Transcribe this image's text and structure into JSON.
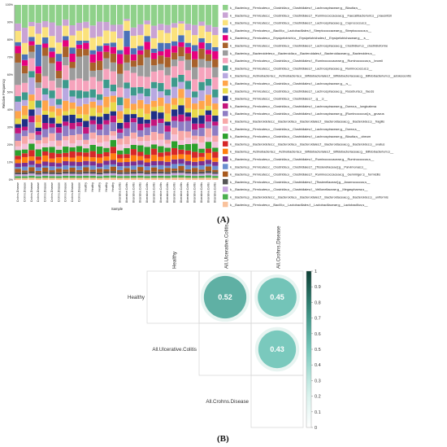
{
  "panels": {
    "a_label": "(A)",
    "b_label": "(B)"
  },
  "chart_data": [
    {
      "type": "bar",
      "stacked": true,
      "ylabel": "Relative Frequency",
      "xlabel": "Sample",
      "yticks": [
        "0%",
        "10%",
        "20%",
        "30%",
        "40%",
        "50%",
        "60%",
        "70%",
        "80%",
        "90%",
        "100%"
      ],
      "ylim": [
        0,
        100
      ],
      "categories": [
        "Crohns.Disease",
        "Crohns.Disease",
        "Crohns.Disease",
        "Crohns.Disease",
        "Crohns.Disease",
        "Crohns.Disease",
        "Crohns.Disease",
        "Crohns.Disease",
        "Crohns.Disease",
        "Crohns.Disease",
        "Healthy",
        "Healthy",
        "Healthy",
        "Healthy",
        "Healthy",
        "Ulcerative.Colitis",
        "Ulcerative.Colitis",
        "Ulcerative.Colitis",
        "Ulcerative.Colitis",
        "Ulcerative.Colitis",
        "Ulcerative.Colitis",
        "Ulcerative.Colitis",
        "Ulcerative.Colitis",
        "Ulcerative.Colitis",
        "Ulcerative.Colitis",
        "Ulcerative.Colitis",
        "Ulcerative.Colitis",
        "Ulcerative.Colitis",
        "Ulcerative.Colitis",
        "Ulcerative.Colitis"
      ],
      "series": [
        {
          "name": "k__Bacteria;p__Firmicutes;c__Clostridia;o__Clostridiales;f__Lachnospiraceae;g__Blautia;s__",
          "color": "#8fd18a",
          "values": [
            10,
            12,
            8,
            10,
            8,
            9,
            11,
            7,
            10,
            9,
            8,
            10,
            9,
            8,
            9,
            10,
            7,
            11,
            9,
            8,
            10,
            9,
            10,
            8,
            7,
            9,
            10,
            8,
            9,
            11
          ]
        },
        {
          "name": "k__Bacteria;p__Firmicutes;c__Clostridia;o__Clostridiales;f__Ruminococcaceae;g__Faecalibacterium;s__prausnitzii",
          "color": "#c9a3d4",
          "values": [
            4,
            8,
            2,
            6,
            3,
            7,
            9,
            3,
            5,
            4,
            3,
            6,
            8,
            4,
            3,
            7,
            1,
            4,
            5,
            2,
            6,
            3,
            4,
            2,
            1,
            3,
            5,
            2,
            3,
            4
          ]
        },
        {
          "name": "k__Bacteria;p__Firmicutes;c__Clostridia;o__Clostridiales;f__Lachnospiraceae;g__Coprococcus;s__",
          "color": "#fbe27c",
          "values": [
            6,
            6,
            5,
            6,
            5,
            6,
            6,
            5,
            6,
            5,
            6,
            6,
            5,
            6,
            5,
            6,
            5,
            6,
            5,
            6,
            5,
            6,
            5,
            6,
            5,
            6,
            5,
            6,
            5,
            6
          ]
        },
        {
          "name": "k__Bacteria;p__Firmicutes;c__Bacilli;o__Lactobacillales;f__Streptococcaceae;g__Streptococcus;s__",
          "color": "#4a72b8",
          "values": [
            2,
            3,
            2,
            12,
            3,
            2,
            4,
            2,
            3,
            2,
            1,
            2,
            3,
            1,
            2,
            2,
            8,
            3,
            2,
            3,
            2,
            4,
            3,
            2,
            3,
            2,
            3,
            2,
            3,
            2
          ]
        },
        {
          "name": "k__Bacteria;p__Firmicutes;c__Erysipelotrichi;o__Erysipelotrichales;f__Erysipelotrichaceae;g__;s__",
          "color": "#e6007e",
          "values": [
            4,
            3,
            2,
            4,
            2,
            3,
            5,
            3,
            4,
            2,
            3,
            4,
            5,
            3,
            3,
            5,
            4,
            3,
            2,
            4,
            3,
            2,
            4,
            3,
            2,
            3,
            4,
            3,
            2,
            4
          ]
        },
        {
          "name": "k__Bacteria;p__Firmicutes;c__Clostridia;o__Clostridiales;f__Lachnospiraceae;g__Clostridium;s__clostridioforme",
          "color": "#a8612a",
          "values": [
            5,
            4,
            3,
            5,
            4,
            3,
            4,
            5,
            3,
            4,
            3,
            4,
            5,
            3,
            4,
            5,
            4,
            3,
            5,
            4,
            3,
            4,
            5,
            3,
            4,
            3,
            4,
            5,
            3,
            4
          ]
        },
        {
          "name": "k__Bacteria;p__Bacteroidetes;c__Bacteroidia;o__Bacteroidales;f__Bacteroidaceae;g__Bacteroides;s__",
          "color": "#9c9c9c",
          "values": [
            12,
            5,
            3,
            3,
            10,
            9,
            5,
            4,
            6,
            11,
            12,
            3,
            6,
            5,
            4,
            7,
            4,
            3,
            5,
            10,
            3,
            3,
            4,
            3,
            2,
            5,
            6,
            4,
            3,
            5
          ]
        },
        {
          "name": "k__Bacteria;p__Firmicutes;c__Clostridia;o__Clostridiales;f__Ruminococcaceae;g__Ruminococcus;s__bromii",
          "color": "#f6a3bc",
          "values": [
            6,
            5,
            6,
            7,
            6,
            5,
            6,
            7,
            5,
            6,
            5,
            6,
            7,
            5,
            6,
            5,
            6,
            7,
            5,
            6,
            5,
            6,
            7,
            5,
            6,
            5,
            6,
            7,
            5,
            6
          ]
        },
        {
          "name": "k__Bacteria;p__Firmicutes;c__Clostridia;o__Clostridiales;f__Lachnospiraceae;g__Ruminococcus;s__",
          "color": "#3d9a8c",
          "values": [
            3,
            4,
            3,
            4,
            3,
            4,
            3,
            4,
            3,
            4,
            3,
            4,
            3,
            4,
            3,
            4,
            3,
            4,
            3,
            4,
            3,
            4,
            3,
            4,
            3,
            4,
            3,
            4,
            3,
            4
          ]
        },
        {
          "name": "k__Bacteria;p__Actinobacteria;c__Actinobacteria;o__Bifidobacteriales;f__Bifidobacteriaceae;g__Bifidobacterium;s__adolescentis",
          "color": "#b8a8e0",
          "values": [
            5,
            3,
            8,
            4,
            3,
            4,
            2,
            6,
            3,
            4,
            3,
            2,
            3,
            4,
            2,
            3,
            5,
            4,
            3,
            4,
            6,
            3,
            4,
            5,
            3,
            4,
            3,
            5,
            4,
            3
          ]
        },
        {
          "name": "k__Bacteria;p__Firmicutes;c__Clostridia;o__Clostridiales;f__Lachnospiraceae;g__;s__",
          "color": "#ffa54a",
          "values": [
            4,
            5,
            3,
            4,
            5,
            3,
            4,
            5,
            3,
            4,
            5,
            3,
            4,
            5,
            3,
            4,
            5,
            3,
            4,
            5,
            3,
            4,
            5,
            3,
            4,
            5,
            3,
            4,
            5,
            3
          ]
        },
        {
          "name": "k__Bacteria;p__Firmicutes;c__Clostridia;o__Clostridiales;f__Lachnospiraceae;g__Roseburia;s__faecis",
          "color": "#e8d94a",
          "values": [
            3,
            2,
            4,
            3,
            2,
            3,
            4,
            2,
            3,
            2,
            3,
            4,
            2,
            3,
            4,
            2,
            3,
            2,
            4,
            3,
            2,
            3,
            4,
            2,
            3,
            2,
            4,
            3,
            2,
            3
          ]
        },
        {
          "name": "k__Bacteria;p__Firmicutes;c__Clostridia;o__Clostridiales;f__;g__;s__",
          "color": "#1f2f86",
          "values": [
            2,
            4,
            3,
            2,
            4,
            3,
            2,
            3,
            4,
            2,
            3,
            2,
            4,
            3,
            2,
            3,
            4,
            2,
            3,
            2,
            4,
            3,
            2,
            3,
            4,
            2,
            3,
            4,
            2,
            3
          ]
        },
        {
          "name": "k__Bacteria;p__Firmicutes;c__Clostridia;o__Clostridiales;f__Lachnospiraceae;g__Dorea;s__longicatena",
          "color": "#c4147c",
          "values": [
            3,
            2,
            3,
            2,
            3,
            2,
            3,
            2,
            3,
            2,
            3,
            2,
            3,
            2,
            3,
            2,
            3,
            2,
            3,
            2,
            3,
            2,
            3,
            2,
            3,
            2,
            3,
            2,
            3,
            2
          ]
        },
        {
          "name": "k__Bacteria;p__Firmicutes;c__Clostridia;o__Clostridiales;f__Lachnospiraceae;g__[Ruminococcus];s__gnavus",
          "color": "#8e7cc3",
          "values": [
            4,
            3,
            5,
            3,
            4,
            3,
            4,
            5,
            3,
            4,
            3,
            4,
            3,
            5,
            4,
            3,
            4,
            5,
            3,
            4,
            3,
            5,
            4,
            3,
            4,
            5,
            3,
            4,
            3,
            5
          ]
        },
        {
          "name": "k__Bacteria;p__Bacteroidetes;c__Bacteroidia;o__Bacteroidales;f__Bacteroidaceae;g__Bacteroides;s__fragilis",
          "color": "#f7a8a8",
          "values": [
            3,
            4,
            3,
            2,
            3,
            4,
            3,
            2,
            4,
            3,
            2,
            3,
            4,
            3,
            2,
            3,
            4,
            3,
            2,
            3,
            4,
            3,
            2,
            3,
            4,
            3,
            2,
            3,
            4,
            3
          ]
        },
        {
          "name": "k__Bacteria;p__Firmicutes;c__Clostridia;o__Clostridiales;f__Lachnospiraceae;g__Dorea;s__",
          "color": "#f3c1d9",
          "values": [
            2,
            3,
            2,
            3,
            2,
            3,
            2,
            3,
            2,
            3,
            2,
            3,
            2,
            3,
            2,
            3,
            2,
            3,
            2,
            3,
            2,
            3,
            2,
            3,
            2,
            3,
            2,
            3,
            2,
            3
          ]
        },
        {
          "name": "k__Bacteria;p__Firmicutes;c__Clostridia;o__Clostridiales;f__Lachnospiraceae;g__Blautia;s__obeum",
          "color": "#2ca02c",
          "values": [
            3,
            2,
            3,
            4,
            2,
            3,
            2,
            3,
            2,
            3,
            2,
            3,
            4,
            2,
            3,
            2,
            3,
            2,
            3,
            4,
            2,
            3,
            2,
            3,
            2,
            3,
            4,
            2,
            3,
            2
          ]
        },
        {
          "name": "k__Bacteria;p__Bacteroidetes;c__Bacteroidia;o__Bacteroidales;f__Bacteroidaceae;g__Bacteroides;s__ovatus",
          "color": "#d62728",
          "values": [
            2,
            2,
            3,
            2,
            2,
            3,
            2,
            2,
            3,
            2,
            2,
            3,
            2,
            2,
            3,
            2,
            2,
            3,
            2,
            2,
            3,
            2,
            2,
            3,
            2,
            2,
            3,
            2,
            2,
            3
          ]
        },
        {
          "name": "k__Bacteria;p__Actinobacteria;c__Actinobacteria;o__Bifidobacteriales;f__Bifidobacteriaceae;g__Bifidobacterium;s__",
          "color": "#ff7f0e",
          "values": [
            2,
            3,
            2,
            2,
            3,
            2,
            3,
            2,
            2,
            3,
            2,
            2,
            3,
            2,
            3,
            2,
            2,
            3,
            2,
            2,
            3,
            2,
            3,
            2,
            2,
            3,
            2,
            2,
            3,
            2
          ]
        },
        {
          "name": "k__Bacteria;p__Firmicutes;c__Clostridia;o__Clostridiales;f__Ruminococcaceae;g__Ruminococcus;s__",
          "color": "#7b2f91",
          "values": [
            2,
            2,
            2,
            2,
            2,
            2,
            2,
            2,
            2,
            2,
            2,
            2,
            2,
            2,
            2,
            2,
            2,
            2,
            2,
            2,
            2,
            2,
            2,
            2,
            2,
            2,
            2,
            2,
            2,
            2
          ]
        },
        {
          "name": "k__Bacteria;p__Firmicutes;c__Clostridia;o__Clostridiales;f__[Tissierellaceae];g__Parvimonas;s__",
          "color": "#6a8fcf",
          "values": [
            1,
            2,
            1,
            2,
            1,
            2,
            1,
            2,
            1,
            2,
            1,
            2,
            1,
            2,
            1,
            2,
            1,
            2,
            1,
            2,
            1,
            2,
            1,
            2,
            1,
            2,
            1,
            2,
            1,
            2
          ]
        },
        {
          "name": "k__Bacteria;p__Firmicutes;c__Clostridia;o__Clostridiales;f__Ruminococcaceae;g__Gemmiger;s__formicilis",
          "color": "#a85a1e",
          "values": [
            2,
            1,
            2,
            1,
            2,
            1,
            2,
            1,
            2,
            1,
            2,
            1,
            2,
            1,
            2,
            1,
            2,
            1,
            2,
            1,
            2,
            1,
            2,
            1,
            2,
            1,
            2,
            1,
            2,
            1
          ]
        },
        {
          "name": "k__Bacteria;p__Firmicutes;c__Clostridia;o__Clostridiales;f__[Tissierellaceae];g__Anaerococcus;s__",
          "color": "#555555",
          "values": [
            1,
            1,
            1,
            1,
            1,
            1,
            1,
            1,
            1,
            1,
            1,
            1,
            1,
            1,
            1,
            1,
            1,
            1,
            1,
            1,
            1,
            1,
            1,
            1,
            1,
            1,
            1,
            1,
            1,
            1
          ]
        },
        {
          "name": "k__Bacteria;p__Firmicutes;c__Clostridia;o__Clostridiales;f__Veillonellaceae;g__Megasphaera;s__",
          "color": "#c9a8e0",
          "values": [
            1,
            1,
            1,
            1,
            1,
            1,
            1,
            1,
            1,
            1,
            1,
            1,
            1,
            1,
            1,
            1,
            1,
            1,
            1,
            1,
            1,
            1,
            1,
            1,
            1,
            1,
            1,
            1,
            1,
            1
          ]
        },
        {
          "name": "k__Bacteria;p__Bacteroidetes;c__Bacteroidia;o__Bacteroidales;f__Bacteroidaceae;g__Bacteroides;s__uniformis",
          "color": "#4caf50",
          "values": [
            1,
            1,
            1,
            1,
            1,
            1,
            1,
            1,
            1,
            1,
            1,
            1,
            1,
            1,
            1,
            1,
            1,
            1,
            1,
            1,
            1,
            1,
            1,
            1,
            1,
            1,
            1,
            1,
            1,
            1
          ]
        },
        {
          "name": "k__Bacteria;p__Firmicutes;c__Bacilli;o__Lactobacillales;f__Lactobacillaceae;g__Lactobacillus;s__",
          "color": "#f9c29c",
          "values": [
            1,
            1,
            1,
            1,
            1,
            1,
            1,
            1,
            1,
            1,
            1,
            1,
            1,
            1,
            1,
            1,
            1,
            1,
            1,
            1,
            1,
            1,
            1,
            1,
            1,
            1,
            1,
            1,
            1,
            1
          ]
        }
      ]
    },
    {
      "type": "heatmap",
      "rows": [
        "Healthy",
        "All.Ulcerative.Colitis",
        "All.Crohns.Disease"
      ],
      "columns": [
        "Healthy",
        "All.Ulcerative.Colitis",
        "All.Crohns.Disease"
      ],
      "values": [
        {
          "row": "Healthy",
          "column": "All.Ulcerative.Colitis",
          "value": 0.52
        },
        {
          "row": "Healthy",
          "column": "All.Crohns.Disease",
          "value": 0.45
        },
        {
          "row": "All.Ulcerative.Colitis",
          "column": "All.Crohns.Disease",
          "value": 0.43
        }
      ],
      "colorbar": {
        "range": [
          0,
          1
        ],
        "ticks": [
          "0",
          "0.1",
          "0.2",
          "0.3",
          "0.4",
          "0.5",
          "0.6",
          "0.7",
          "0.8",
          "0.9",
          "1"
        ],
        "low_color": "#ffffff",
        "high_color": "#0e3f35"
      }
    }
  ]
}
